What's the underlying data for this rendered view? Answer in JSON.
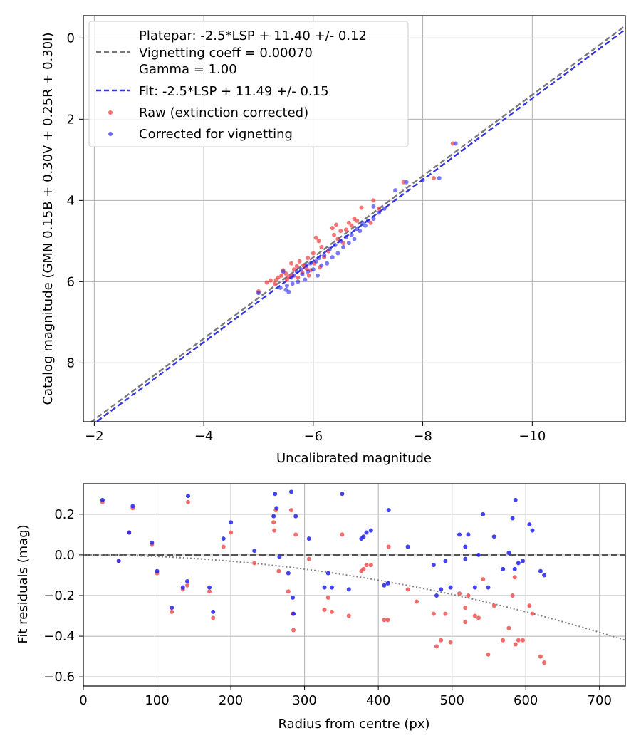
{
  "chart_data": [
    {
      "type": "scatter",
      "xlabel": "Uncalibrated magnitude",
      "ylabel": "Catalog magnitude (GMN 0.15B + 0.30V + 0.25R + 0.30I)",
      "xlim": [
        -1.8,
        -11.7
      ],
      "ylim": [
        9.45,
        -0.55
      ],
      "xticks": [
        -2,
        -4,
        -6,
        -8,
        -10
      ],
      "xtick_labels": [
        "−2",
        "−4",
        "−6",
        "−8",
        "−10"
      ],
      "yticks": [
        0,
        2,
        4,
        6,
        8
      ],
      "ytick_labels": [
        "0",
        "2",
        "4",
        "6",
        "8"
      ],
      "grid": true,
      "legend_position": "top-left",
      "lines": [
        {
          "name": "platepar",
          "label_lines": [
            "Platepar: -2.5*LSP + 11.40 +/- 0.12",
            "Vignetting coeff = 0.00070",
            "Gamma = 1.00"
          ],
          "intercept": 11.4,
          "slope": 1.0,
          "color": "#7a7a7a",
          "dash": "dashed"
        },
        {
          "name": "fit",
          "label_lines": [
            "Fit: -2.5*LSP + 11.49 +/- 0.15"
          ],
          "intercept": 11.49,
          "slope": 1.0,
          "color": "#3535e0",
          "dash": "dashed"
        }
      ],
      "series": [
        {
          "name": "Raw (extinction corrected)",
          "color": "#ee3b3b",
          "points": [
            [
              -5.0,
              6.24
            ],
            [
              -5.15,
              6.02
            ],
            [
              -5.22,
              5.97
            ],
            [
              -5.3,
              6.05
            ],
            [
              -5.32,
              5.96
            ],
            [
              -5.36,
              5.9
            ],
            [
              -5.42,
              5.85
            ],
            [
              -5.45,
              5.72
            ],
            [
              -5.5,
              5.8
            ],
            [
              -5.52,
              5.95
            ],
            [
              -5.55,
              5.88
            ],
            [
              -5.6,
              5.55
            ],
            [
              -5.62,
              5.85
            ],
            [
              -5.65,
              5.7
            ],
            [
              -5.7,
              5.62
            ],
            [
              -5.72,
              5.9
            ],
            [
              -5.75,
              5.5
            ],
            [
              -5.8,
              5.78
            ],
            [
              -5.82,
              5.6
            ],
            [
              -5.88,
              5.68
            ],
            [
              -5.9,
              5.42
            ],
            [
              -5.92,
              5.85
            ],
            [
              -5.95,
              5.72
            ],
            [
              -6.0,
              5.3
            ],
            [
              -6.02,
              5.55
            ],
            [
              -6.05,
              4.92
            ],
            [
              -6.1,
              5.0
            ],
            [
              -6.12,
              5.65
            ],
            [
              -6.15,
              5.15
            ],
            [
              -6.2,
              5.4
            ],
            [
              -6.28,
              5.25
            ],
            [
              -6.35,
              4.68
            ],
            [
              -6.38,
              4.85
            ],
            [
              -6.42,
              4.6
            ],
            [
              -6.45,
              4.95
            ],
            [
              -6.5,
              4.75
            ],
            [
              -6.55,
              5.05
            ],
            [
              -6.6,
              4.72
            ],
            [
              -6.65,
              4.55
            ],
            [
              -6.7,
              4.62
            ],
            [
              -6.75,
              4.45
            ],
            [
              -6.8,
              4.5
            ],
            [
              -6.88,
              4.18
            ],
            [
              -7.1,
              4.0
            ],
            [
              -7.05,
              4.55
            ],
            [
              -7.2,
              4.2
            ],
            [
              -7.65,
              3.55
            ],
            [
              -8.2,
              3.45
            ],
            [
              -8.55,
              2.6
            ]
          ]
        },
        {
          "name": "Corrected for vignetting",
          "color": "#2222ee",
          "points": [
            [
              -5.0,
              6.28
            ],
            [
              -5.4,
              6.15
            ],
            [
              -5.45,
              5.75
            ],
            [
              -5.5,
              6.2
            ],
            [
              -5.52,
              6.1
            ],
            [
              -5.55,
              6.25
            ],
            [
              -5.6,
              5.9
            ],
            [
              -5.62,
              6.05
            ],
            [
              -5.65,
              5.85
            ],
            [
              -5.7,
              5.75
            ],
            [
              -5.72,
              6.0
            ],
            [
              -5.78,
              5.7
            ],
            [
              -5.8,
              5.82
            ],
            [
              -5.85,
              5.95
            ],
            [
              -5.88,
              5.6
            ],
            [
              -5.9,
              5.75
            ],
            [
              -5.95,
              5.55
            ],
            [
              -6.0,
              5.7
            ],
            [
              -6.05,
              5.5
            ],
            [
              -6.08,
              5.85
            ],
            [
              -6.1,
              5.42
            ],
            [
              -6.15,
              5.6
            ],
            [
              -6.2,
              5.35
            ],
            [
              -6.25,
              5.55
            ],
            [
              -6.3,
              5.2
            ],
            [
              -6.35,
              5.4
            ],
            [
              -6.4,
              5.1
            ],
            [
              -6.45,
              5.3
            ],
            [
              -6.5,
              5.0
            ],
            [
              -6.55,
              5.15
            ],
            [
              -6.6,
              4.9
            ],
            [
              -6.65,
              5.05
            ],
            [
              -6.7,
              4.85
            ],
            [
              -6.75,
              4.95
            ],
            [
              -6.8,
              4.7
            ],
            [
              -6.85,
              4.75
            ],
            [
              -6.9,
              4.55
            ],
            [
              -6.95,
              4.62
            ],
            [
              -7.0,
              4.5
            ],
            [
              -7.1,
              4.45
            ],
            [
              -7.2,
              4.3
            ],
            [
              -7.3,
              4.2
            ],
            [
              -7.1,
              4.15
            ],
            [
              -7.5,
              3.75
            ],
            [
              -7.7,
              3.55
            ],
            [
              -8.0,
              3.5
            ],
            [
              -8.3,
              3.45
            ],
            [
              -8.6,
              2.6
            ]
          ]
        }
      ]
    },
    {
      "type": "scatter",
      "xlabel": "Radius from centre (px)",
      "ylabel": "Fit residuals (mag)",
      "xlim": [
        0,
        735
      ],
      "ylim": [
        -0.645,
        0.35
      ],
      "xticks": [
        0,
        100,
        200,
        300,
        400,
        500,
        600,
        700
      ],
      "xtick_labels": [
        "0",
        "100",
        "200",
        "300",
        "400",
        "500",
        "600",
        "700"
      ],
      "yticks": [
        0.2,
        0.0,
        -0.2,
        -0.4,
        -0.6
      ],
      "ytick_labels": [
        "0.2",
        "0.0",
        "−0.2",
        "−0.4",
        "−0.6"
      ],
      "grid": true,
      "zero_line": {
        "value": 0.0,
        "color": "#555555",
        "dash": "dashed"
      },
      "vignetting_curve": {
        "coeff": 0.0007,
        "color": "#808080",
        "dash": "dotted"
      },
      "series": [
        {
          "name": "Raw (extinction corrected)",
          "color": "#ee3b3b",
          "points": [
            [
              26,
              0.26
            ],
            [
              48,
              -0.03
            ],
            [
              62,
              0.11
            ],
            [
              67,
              0.23
            ],
            [
              93,
              0.05
            ],
            [
              100,
              -0.09
            ],
            [
              120,
              -0.28
            ],
            [
              135,
              -0.17
            ],
            [
              141,
              -0.15
            ],
            [
              142,
              0.26
            ],
            [
              171,
              -0.18
            ],
            [
              176,
              -0.31
            ],
            [
              190,
              0.04
            ],
            [
              200,
              0.11
            ],
            [
              232,
              -0.04
            ],
            [
              258,
              0.16
            ],
            [
              259,
              0.12
            ],
            [
              261,
              0.22
            ],
            [
              265,
              -0.08
            ],
            [
              278,
              -0.18
            ],
            [
              282,
              0.22
            ],
            [
              284,
              -0.29
            ],
            [
              285,
              -0.37
            ],
            [
              288,
              0.1
            ],
            [
              306,
              -0.02
            ],
            [
              327,
              -0.27
            ],
            [
              332,
              -0.21
            ],
            [
              337,
              -0.28
            ],
            [
              351,
              0.1
            ],
            [
              360,
              -0.3
            ],
            [
              377,
              -0.08
            ],
            [
              380,
              -0.07
            ],
            [
              384,
              -0.05
            ],
            [
              390,
              -0.05
            ],
            [
              408,
              -0.32
            ],
            [
              413,
              -0.32
            ],
            [
              414,
              0.04
            ],
            [
              440,
              -0.17
            ],
            [
              452,
              -0.23
            ],
            [
              475,
              -0.29
            ],
            [
              479,
              -0.45
            ],
            [
              485,
              -0.42
            ],
            [
              491,
              -0.29
            ],
            [
              498,
              -0.43
            ],
            [
              510,
              -0.19
            ],
            [
              518,
              -0.26
            ],
            [
              518,
              -0.33
            ],
            [
              522,
              -0.2
            ],
            [
              531,
              -0.3
            ],
            [
              536,
              -0.31
            ],
            [
              542,
              -0.12
            ],
            [
              549,
              -0.49
            ],
            [
              557,
              -0.25
            ],
            [
              569,
              -0.42
            ],
            [
              577,
              -0.36
            ],
            [
              582,
              -0.2
            ],
            [
              585,
              -0.11
            ],
            [
              586,
              -0.44
            ],
            [
              590,
              -0.42
            ],
            [
              596,
              -0.42
            ],
            [
              605,
              -0.25
            ],
            [
              609,
              -0.29
            ],
            [
              620,
              -0.5
            ],
            [
              625,
              -0.53
            ]
          ]
        },
        {
          "name": "Corrected for vignetting",
          "color": "#2222ee",
          "points": [
            [
              26,
              0.27
            ],
            [
              48,
              -0.03
            ],
            [
              62,
              0.11
            ],
            [
              67,
              0.24
            ],
            [
              93,
              0.06
            ],
            [
              100,
              -0.08
            ],
            [
              120,
              -0.26
            ],
            [
              135,
              -0.16
            ],
            [
              141,
              -0.13
            ],
            [
              142,
              0.29
            ],
            [
              171,
              -0.16
            ],
            [
              176,
              -0.28
            ],
            [
              190,
              0.08
            ],
            [
              200,
              0.16
            ],
            [
              232,
              0.02
            ],
            [
              258,
              0.19
            ],
            [
              260,
              0.3
            ],
            [
              262,
              0.23
            ],
            [
              266,
              -0.01
            ],
            [
              278,
              -0.09
            ],
            [
              282,
              0.31
            ],
            [
              284,
              -0.21
            ],
            [
              285,
              -0.29
            ],
            [
              288,
              0.19
            ],
            [
              306,
              0.08
            ],
            [
              327,
              -0.16
            ],
            [
              332,
              -0.09
            ],
            [
              337,
              -0.16
            ],
            [
              351,
              0.3
            ],
            [
              360,
              -0.17
            ],
            [
              377,
              0.08
            ],
            [
              380,
              0.09
            ],
            [
              384,
              0.11
            ],
            [
              390,
              0.12
            ],
            [
              408,
              -0.15
            ],
            [
              413,
              -0.14
            ],
            [
              414,
              0.22
            ],
            [
              440,
              0.04
            ],
            [
              475,
              -0.05
            ],
            [
              479,
              -0.2
            ],
            [
              485,
              -0.17
            ],
            [
              491,
              -0.03
            ],
            [
              498,
              -0.16
            ],
            [
              510,
              0.1
            ],
            [
              518,
              0.04
            ],
            [
              518,
              -0.02
            ],
            [
              522,
              0.1
            ],
            [
              531,
              -0.16
            ],
            [
              536,
              0.0
            ],
            [
              542,
              0.2
            ],
            [
              549,
              -0.16
            ],
            [
              557,
              0.09
            ],
            [
              569,
              -0.07
            ],
            [
              577,
              0.01
            ],
            [
              582,
              0.18
            ],
            [
              585,
              -0.07
            ],
            [
              586,
              0.27
            ],
            [
              590,
              -0.04
            ],
            [
              596,
              -0.03
            ],
            [
              605,
              0.15
            ],
            [
              609,
              0.12
            ],
            [
              620,
              -0.08
            ],
            [
              625,
              -0.1
            ]
          ]
        }
      ]
    }
  ]
}
